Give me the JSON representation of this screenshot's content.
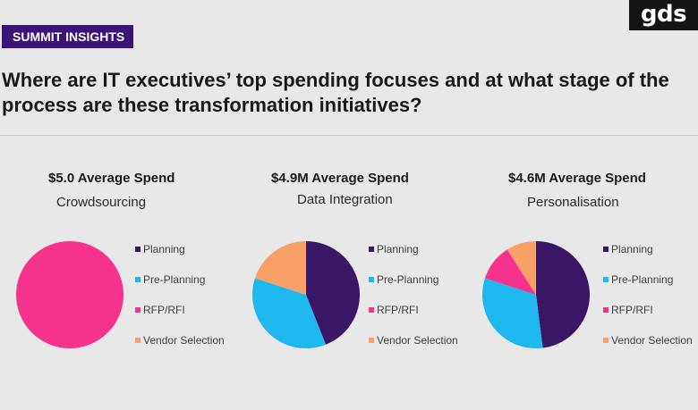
{
  "brand": {
    "logo_text": "gds"
  },
  "badge": {
    "label": "SUMMIT INSIGHTS"
  },
  "heading": "Where are IT executives’ top spending focuses and at what stage of the process are these transformation initiatives?",
  "legend_labels": [
    "Planning",
    "Pre-Planning",
    "RFP/RFI",
    "Vendor Selection"
  ],
  "colors": {
    "Planning": "#3a1766",
    "Pre-Planning": "#1fb8ee",
    "RFP/RFI": "#f5338d",
    "Vendor Selection": "#f8a068"
  },
  "chart_data": [
    {
      "type": "pie",
      "spend": "$5.0 Average Spend",
      "topic": "Crowdsourcing",
      "categories": [
        "Planning",
        "Pre-Planning",
        "RFP/RFI",
        "Vendor Selection"
      ],
      "values": [
        0,
        0,
        100,
        0
      ]
    },
    {
      "type": "pie",
      "spend": "$4.9M Average Spend",
      "topic": "Data Integration",
      "categories": [
        "Planning",
        "Pre-Planning",
        "RFP/RFI",
        "Vendor Selection"
      ],
      "values": [
        44,
        36,
        0,
        20
      ]
    },
    {
      "type": "pie",
      "spend": "$4.6M Average Spend",
      "topic": "Personalisation",
      "categories": [
        "Planning",
        "Pre-Planning",
        "RFP/RFI",
        "Vendor Selection"
      ],
      "values": [
        48,
        32,
        11,
        9
      ]
    }
  ]
}
